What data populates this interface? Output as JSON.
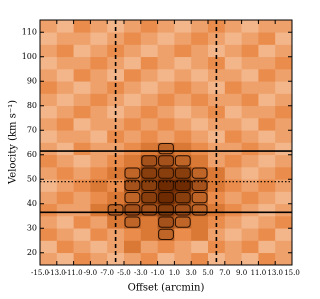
{
  "chart_data": {
    "type": "heatmap",
    "xlabel": "Offset (arcmin)",
    "ylabel": "Velocity (km s⁻¹)",
    "xlim": [
      -15,
      15
    ],
    "ylim": [
      15,
      115
    ],
    "xticks": [
      {
        "value": -15,
        "label": "-15.0"
      },
      {
        "value": -13,
        "label": "-13.0"
      },
      {
        "value": -11,
        "label": "-11.0"
      },
      {
        "value": -9,
        "label": "-9.0"
      },
      {
        "value": -7,
        "label": "-7.0"
      },
      {
        "value": -5,
        "label": "-5.0"
      },
      {
        "value": -3,
        "label": "-3.0"
      },
      {
        "value": -1,
        "label": "-1.0"
      },
      {
        "value": 1,
        "label": "1.0"
      },
      {
        "value": 3,
        "label": "3.0"
      },
      {
        "value": 5,
        "label": "5.0"
      },
      {
        "value": 7,
        "label": "7.0"
      },
      {
        "value": 9,
        "label": "9.0"
      },
      {
        "value": 11,
        "label": "11.0"
      },
      {
        "value": 13,
        "label": "13.0"
      },
      {
        "value": 15,
        "label": "15.0"
      }
    ],
    "yticks": [
      20,
      30,
      40,
      50,
      60,
      70,
      80,
      90,
      100,
      110
    ],
    "xbins": [
      -15,
      -13,
      -11,
      -9,
      -7,
      -5,
      -3,
      -1,
      1,
      3,
      5,
      7,
      9,
      11,
      13,
      15
    ],
    "ybins": [
      15,
      20,
      25,
      30,
      35,
      40,
      45,
      50,
      55,
      60,
      65,
      70,
      75,
      80,
      85,
      90,
      95,
      100,
      105,
      110,
      115
    ],
    "zlim": [
      0,
      9
    ],
    "colormap": [
      "#fbe0c8",
      "#e8823c",
      "#6e2a00"
    ],
    "contour_level": 6,
    "z": [
      [
        3,
        2,
        4,
        3,
        2,
        3,
        4,
        2,
        3,
        4,
        2,
        3,
        2,
        4,
        3
      ],
      [
        2,
        4,
        3,
        2,
        3,
        5,
        3,
        4,
        3,
        2,
        4,
        3,
        4,
        2,
        3
      ],
      [
        4,
        3,
        2,
        4,
        3,
        4,
        5,
        6,
        4,
        5,
        3,
        2,
        3,
        4,
        2
      ],
      [
        3,
        2,
        4,
        3,
        5,
        6,
        5,
        7,
        6,
        5,
        4,
        3,
        2,
        3,
        4
      ],
      [
        4,
        3,
        3,
        5,
        6,
        7,
        7,
        8,
        7,
        6,
        5,
        4,
        3,
        2,
        3
      ],
      [
        3,
        4,
        3,
        4,
        5,
        6,
        8,
        9,
        8,
        6,
        4,
        3,
        4,
        3,
        2
      ],
      [
        2,
        3,
        4,
        5,
        4,
        7,
        8,
        9,
        9,
        7,
        5,
        4,
        3,
        4,
        3
      ],
      [
        3,
        4,
        3,
        4,
        5,
        6,
        8,
        8,
        8,
        6,
        5,
        3,
        2,
        3,
        4
      ],
      [
        4,
        3,
        2,
        3,
        4,
        5,
        7,
        7,
        6,
        5,
        3,
        4,
        3,
        2,
        3
      ],
      [
        3,
        2,
        4,
        3,
        3,
        4,
        5,
        6,
        5,
        4,
        3,
        3,
        4,
        3,
        2
      ],
      [
        2,
        3,
        3,
        2,
        4,
        3,
        4,
        3,
        4,
        3,
        2,
        4,
        3,
        2,
        3
      ],
      [
        3,
        4,
        2,
        3,
        3,
        4,
        3,
        4,
        3,
        2,
        3,
        3,
        2,
        4,
        3
      ],
      [
        2,
        3,
        4,
        3,
        2,
        3,
        4,
        3,
        2,
        3,
        4,
        2,
        3,
        3,
        4
      ],
      [
        3,
        2,
        3,
        4,
        3,
        2,
        3,
        4,
        3,
        4,
        3,
        3,
        4,
        2,
        3
      ],
      [
        4,
        3,
        2,
        3,
        4,
        3,
        2,
        3,
        4,
        3,
        2,
        4,
        3,
        3,
        2
      ],
      [
        3,
        2,
        4,
        3,
        2,
        4,
        3,
        2,
        3,
        2,
        3,
        3,
        2,
        4,
        3
      ],
      [
        2,
        3,
        3,
        4,
        3,
        2,
        4,
        3,
        2,
        3,
        4,
        2,
        3,
        3,
        4
      ],
      [
        3,
        4,
        2,
        3,
        4,
        3,
        2,
        3,
        4,
        3,
        2,
        3,
        4,
        2,
        3
      ],
      [
        2,
        3,
        3,
        2,
        3,
        4,
        3,
        2,
        3,
        4,
        3,
        2,
        3,
        4,
        2
      ],
      [
        3,
        2,
        4,
        3,
        2,
        3,
        4,
        3,
        2,
        3,
        4,
        3,
        2,
        3,
        3
      ]
    ],
    "hlines": [
      {
        "value": 36.5,
        "style": "solid"
      },
      {
        "value": 49,
        "style": "dotted"
      },
      {
        "value": 61.5,
        "style": "solid"
      }
    ],
    "vlines": [
      {
        "value": -6,
        "style": "dashed"
      },
      {
        "value": 6,
        "style": "dashed"
      }
    ]
  }
}
